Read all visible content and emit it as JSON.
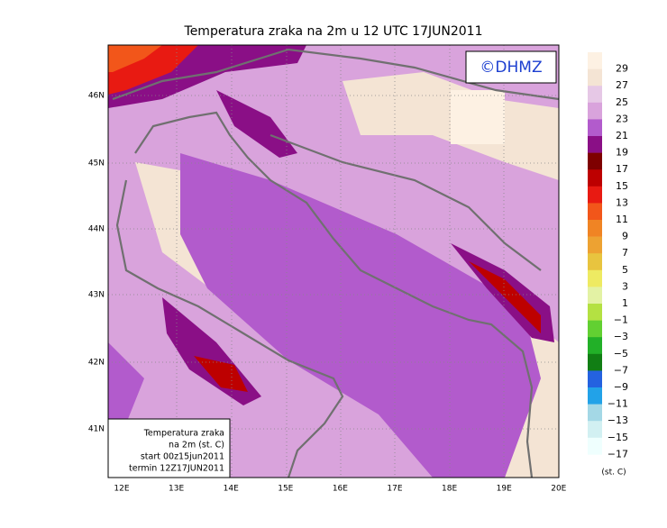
{
  "map": {
    "title": "Temperatura zraka na 2m u 12 UTC 17JUN2011",
    "copyright": "©DHMZ",
    "lat_labels": [
      "46N",
      "45N",
      "44N",
      "43N",
      "42N",
      "41N"
    ],
    "lon_labels": [
      "12E",
      "13E",
      "14E",
      "15E",
      "16E",
      "17E",
      "18E",
      "19E",
      "20E"
    ],
    "legend": {
      "labels": [
        "29",
        "27",
        "25",
        "23",
        "21",
        "19",
        "17",
        "15",
        "13",
        "11",
        "9",
        "7",
        "5",
        "3",
        "1",
        "−1",
        "−3",
        "−5",
        "−7",
        "−9",
        "−11",
        "−13",
        "−15",
        "−17"
      ],
      "colors": [
        "#fdf1e3",
        "#f4e4d4",
        "#e6c8e6",
        "#d9a3dc",
        "#b25bcc",
        "#8a0f86",
        "#7e0000",
        "#bd0000",
        "#e81a12",
        "#f2561a",
        "#f08424",
        "#eda232",
        "#e8c43f",
        "#eeea62",
        "#e3f2a4",
        "#b4e142",
        "#62d032",
        "#22b028",
        "#117e14",
        "#2462e0",
        "#22a2e8",
        "#a4d8e6",
        "#d2f0f2",
        "#effffe"
      ],
      "unit": "(st. C)"
    },
    "info_box": [
      "Temperatura zraka",
      "na 2m (st. C)",
      "start 00z15jun2011",
      "termin 12Z17JUN2011"
    ]
  }
}
